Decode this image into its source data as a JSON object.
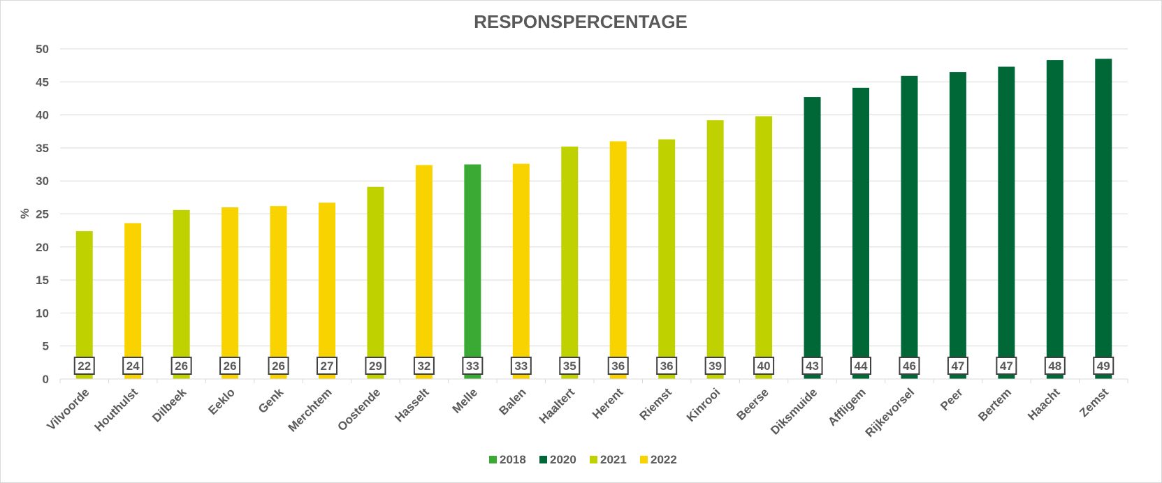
{
  "chart_data": {
    "type": "bar",
    "title": "RESPONSPERCENTAGE",
    "xlabel": "",
    "ylabel": "%",
    "ylim": [
      0,
      50
    ],
    "yticks": [
      0,
      5,
      10,
      15,
      20,
      25,
      30,
      35,
      40,
      45,
      50
    ],
    "grid": true,
    "legend_position": "bottom",
    "categories": [
      "Vilvoorde",
      "Houthulst",
      "Dilbeek",
      "Eeklo",
      "Genk",
      "Merchtem",
      "Oostende",
      "Hasselt",
      "Melle",
      "Balen",
      "Haaltert",
      "Herent",
      "Riemst",
      "Kinrooi",
      "Beerse",
      "Diksmuide",
      "Affligem",
      "Rijkevorsel",
      "Peer",
      "Bertem",
      "Haacht",
      "Zemst"
    ],
    "values": [
      22.4,
      23.6,
      25.6,
      26.0,
      26.2,
      26.7,
      29.1,
      32.4,
      32.5,
      32.6,
      35.2,
      36.0,
      36.3,
      39.2,
      39.8,
      42.7,
      44.1,
      45.9,
      46.5,
      47.3,
      48.3,
      48.5
    ],
    "data_labels": [
      "22",
      "24",
      "26",
      "26",
      "26",
      "27",
      "29",
      "32",
      "33",
      "33",
      "35",
      "36",
      "36",
      "39",
      "40",
      "43",
      "44",
      "46",
      "47",
      "47",
      "48",
      "49"
    ],
    "years": [
      "2021",
      "2022",
      "2021",
      "2022",
      "2022",
      "2022",
      "2021",
      "2022",
      "2018",
      "2022",
      "2021",
      "2022",
      "2021",
      "2021",
      "2021",
      "2020",
      "2020",
      "2020",
      "2020",
      "2020",
      "2020",
      "2020"
    ],
    "legend": [
      {
        "name": "2018",
        "color": "#3aaa35"
      },
      {
        "name": "2020",
        "color": "#006837"
      },
      {
        "name": "2021",
        "color": "#bfd200"
      },
      {
        "name": "2022",
        "color": "#f9d300"
      }
    ]
  }
}
